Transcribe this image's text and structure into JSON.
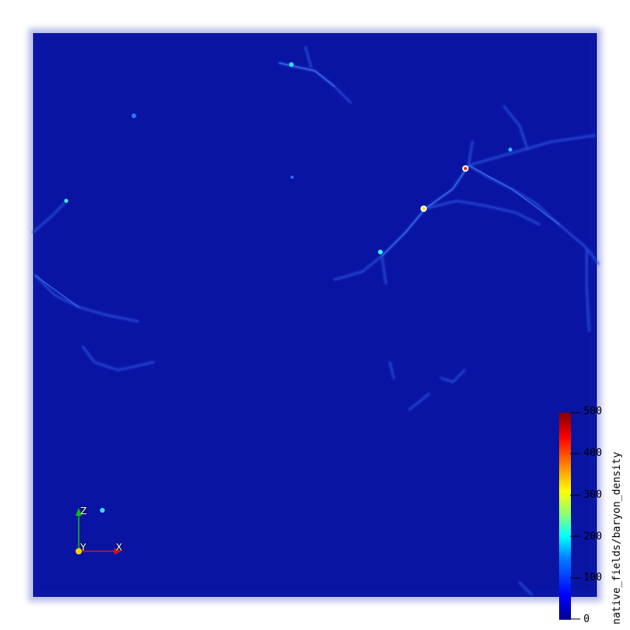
{
  "colorbar": {
    "title": "native_fields/baryon_density",
    "ticks": [
      "500",
      "400",
      "300",
      "200",
      "100",
      "0"
    ],
    "colormap": [
      "#00008f",
      "#0000ff",
      "#0080ff",
      "#00ffff",
      "#80ff80",
      "#ffff00",
      "#ff8000",
      "#ff0000",
      "#800000"
    ]
  },
  "axes": {
    "x": "X",
    "y": "Y",
    "z": "Z",
    "x_color": "#e01010",
    "y_color": "#ffd000",
    "z_color": "#10c010"
  },
  "background": "#0b17a8"
}
